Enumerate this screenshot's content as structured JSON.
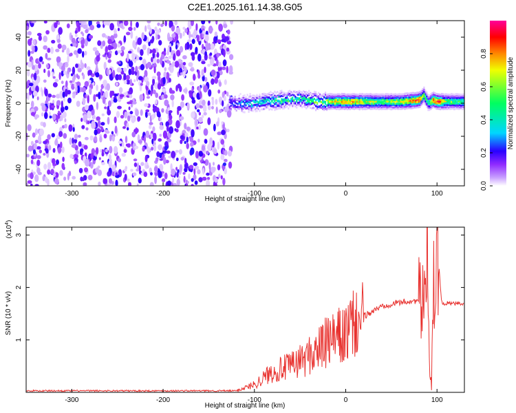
{
  "title": "C2E1.2025.161.14.38.G05",
  "chart_data": [
    {
      "type": "heatmap",
      "xlabel": "Height of straight line (km)",
      "ylabel": "Frequency (Hz)",
      "xlim": [
        -350,
        130
      ],
      "ylim": [
        -50,
        50
      ],
      "xticks": [
        -300,
        -200,
        -100,
        0,
        100
      ],
      "yticks": [
        -40,
        -20,
        0,
        20,
        40
      ],
      "colorbar": {
        "label": "Normalized spectral amplitude",
        "range": [
          0,
          1
        ],
        "ticks": [
          0.0,
          0.2,
          0.4,
          0.6,
          0.8
        ],
        "colormap": [
          "#ffffff",
          "#c9a0ff",
          "#8f2bff",
          "#2a00ff",
          "#00d6ff",
          "#00ff60",
          "#f0ff00",
          "#ff8800",
          "#ff0000",
          "#ff0099"
        ]
      },
      "ridge": {
        "x": [
          -130,
          -110,
          -90,
          -70,
          -50,
          -40,
          -30,
          -10,
          0,
          20,
          40,
          60,
          80,
          85,
          90,
          95,
          100,
          110,
          130
        ],
        "frequency": [
          0,
          0,
          1,
          2,
          3,
          2,
          1,
          1,
          1,
          1,
          1,
          1,
          2,
          5,
          0,
          2,
          1,
          1,
          1
        ],
        "amplitude": [
          0.3,
          0.45,
          0.5,
          0.55,
          0.55,
          0.55,
          0.6,
          0.7,
          0.75,
          0.65,
          0.6,
          0.65,
          0.85,
          0.6,
          0.5,
          0.8,
          0.85,
          0.6,
          0.55
        ]
      },
      "noise_region": {
        "x": [
          -350,
          -125
        ],
        "amplitude": [
          0.05,
          0.35
        ]
      }
    },
    {
      "type": "line",
      "xlabel": "Height of straight line (km)",
      "ylabel": "SNR (10 * v/v)",
      "yscale_label": "(x10^4)",
      "xlim": [
        -350,
        130
      ],
      "ylim": [
        0,
        3.15
      ],
      "xticks": [
        -300,
        -200,
        -100,
        0,
        100
      ],
      "yticks": [
        1,
        2,
        3
      ],
      "series": [
        {
          "color": "#e8312e",
          "x": [
            -350,
            -300,
            -200,
            -120,
            -100,
            -80,
            -60,
            -40,
            -20,
            0,
            10,
            20,
            40,
            60,
            80,
            85,
            88,
            90,
            92,
            94,
            96,
            98,
            100,
            105,
            110,
            130
          ],
          "y": [
            0.03,
            0.03,
            0.03,
            0.03,
            0.15,
            0.4,
            0.5,
            0.7,
            0.95,
            1.1,
            1.3,
            1.45,
            1.65,
            1.72,
            1.75,
            1.6,
            2.4,
            3.1,
            0.5,
            0.08,
            2.6,
            1.2,
            3.0,
            1.7,
            1.7,
            1.68
          ]
        }
      ]
    }
  ]
}
